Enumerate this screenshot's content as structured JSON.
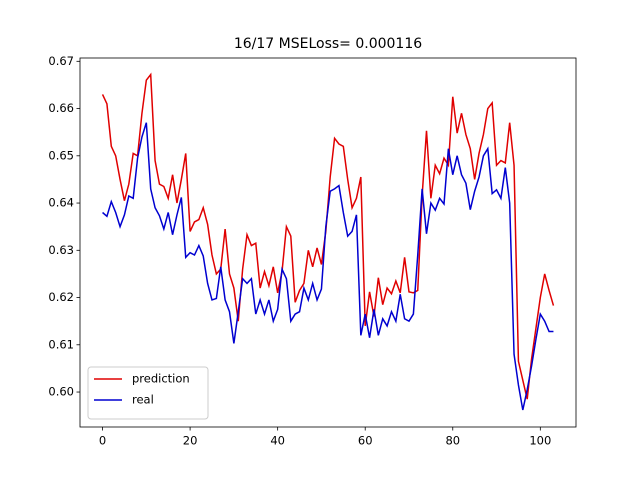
{
  "chart_data": {
    "type": "line",
    "title": "16/17 MSELoss= 0.000116",
    "x": [
      0,
      1,
      2,
      3,
      4,
      5,
      6,
      7,
      8,
      9,
      10,
      11,
      12,
      13,
      14,
      15,
      16,
      17,
      18,
      19,
      20,
      21,
      22,
      23,
      24,
      25,
      26,
      27,
      28,
      29,
      30,
      31,
      32,
      33,
      34,
      35,
      36,
      37,
      38,
      39,
      40,
      41,
      42,
      43,
      44,
      45,
      46,
      47,
      48,
      49,
      50,
      51,
      52,
      53,
      54,
      55,
      56,
      57,
      58,
      59,
      60,
      61,
      62,
      63,
      64,
      65,
      66,
      67,
      68,
      69,
      70,
      71,
      72,
      73,
      74,
      75,
      76,
      77,
      78,
      79,
      80,
      81,
      82,
      83,
      84,
      85,
      86,
      87,
      88,
      89,
      90,
      91,
      92,
      93,
      94,
      95,
      96,
      97,
      98,
      99,
      100,
      101,
      102,
      103
    ],
    "series": [
      {
        "name": "prediction",
        "color": "#e00000",
        "values": [
          0.663,
          0.661,
          0.652,
          0.65,
          0.645,
          0.6405,
          0.644,
          0.6505,
          0.65,
          0.659,
          0.666,
          0.6672,
          0.649,
          0.644,
          0.6435,
          0.641,
          0.646,
          0.64,
          0.645,
          0.6505,
          0.634,
          0.636,
          0.6365,
          0.639,
          0.6355,
          0.629,
          0.625,
          0.626,
          0.6345,
          0.625,
          0.622,
          0.615,
          0.626,
          0.6333,
          0.631,
          0.6315,
          0.622,
          0.6255,
          0.6225,
          0.6265,
          0.621,
          0.6255,
          0.635,
          0.633,
          0.619,
          0.6215,
          0.623,
          0.63,
          0.6265,
          0.6305,
          0.627,
          0.634,
          0.6455,
          0.6537,
          0.6525,
          0.652,
          0.645,
          0.639,
          0.641,
          0.6455,
          0.614,
          0.6212,
          0.616,
          0.6242,
          0.6185,
          0.622,
          0.6208,
          0.6235,
          0.621,
          0.6285,
          0.6212,
          0.621,
          0.6215,
          0.6415,
          0.6553,
          0.641,
          0.648,
          0.6462,
          0.6495,
          0.648,
          0.6625,
          0.6548,
          0.659,
          0.6545,
          0.6515,
          0.645,
          0.6505,
          0.6545,
          0.66,
          0.6612,
          0.648,
          0.649,
          0.6485,
          0.657,
          0.648,
          0.6065,
          0.6025,
          0.5985,
          0.607,
          0.6135,
          0.62,
          0.625,
          0.6215,
          0.6183
        ]
      },
      {
        "name": "real",
        "color": "#0000d0",
        "values": [
          0.638,
          0.6372,
          0.6403,
          0.638,
          0.635,
          0.6375,
          0.6415,
          0.641,
          0.6495,
          0.654,
          0.657,
          0.643,
          0.639,
          0.6373,
          0.6345,
          0.638,
          0.6333,
          0.6375,
          0.6412,
          0.6285,
          0.6295,
          0.629,
          0.631,
          0.6288,
          0.623,
          0.6195,
          0.6198,
          0.6265,
          0.6195,
          0.617,
          0.6103,
          0.617,
          0.624,
          0.623,
          0.624,
          0.6165,
          0.6195,
          0.6165,
          0.6195,
          0.615,
          0.6175,
          0.626,
          0.624,
          0.615,
          0.6165,
          0.617,
          0.622,
          0.6195,
          0.623,
          0.6195,
          0.6218,
          0.635,
          0.6425,
          0.643,
          0.6437,
          0.638,
          0.633,
          0.634,
          0.6375,
          0.612,
          0.6165,
          0.6115,
          0.6175,
          0.612,
          0.6155,
          0.614,
          0.617,
          0.615,
          0.6207,
          0.6155,
          0.615,
          0.6165,
          0.629,
          0.643,
          0.6335,
          0.64,
          0.6385,
          0.641,
          0.6398,
          0.6515,
          0.646,
          0.65,
          0.646,
          0.6442,
          0.6386,
          0.6425,
          0.6455,
          0.65,
          0.6515,
          0.642,
          0.6428,
          0.641,
          0.6475,
          0.64,
          0.608,
          0.6015,
          0.5962,
          0.6005,
          0.6055,
          0.6112,
          0.6165,
          0.615,
          0.6128,
          0.6128
        ]
      }
    ],
    "xlim": [
      -5.15,
      108.15
    ],
    "ylim": [
      0.5926,
      0.6707
    ],
    "xticks": [
      0,
      20,
      40,
      60,
      80,
      100
    ],
    "yticks": [
      {
        "value": 0.6,
        "label": "0.60"
      },
      0.61,
      0.62,
      0.63,
      0.64,
      0.65,
      0.66,
      0.67
    ],
    "grid": false,
    "legend": "lower left"
  }
}
